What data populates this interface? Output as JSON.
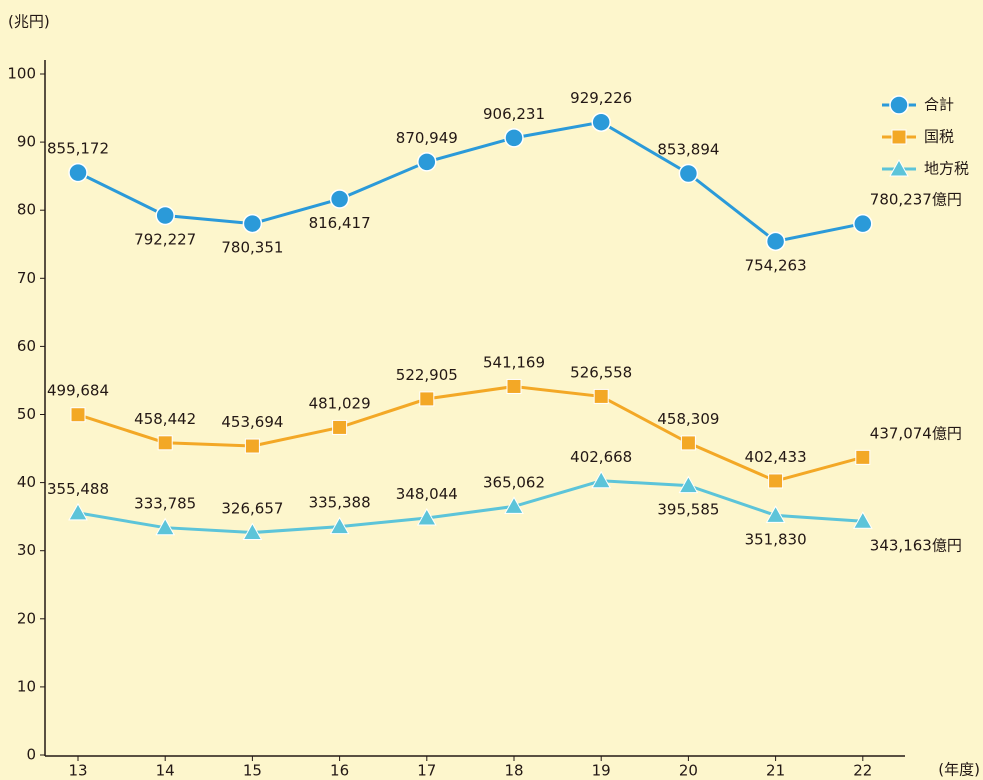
{
  "chart_data": {
    "type": "line",
    "y_axis_label": "(兆円)",
    "x_axis_label": "(年度)",
    "value_unit": "億円",
    "categories": [
      "13",
      "14",
      "15",
      "16",
      "17",
      "18",
      "19",
      "20",
      "21",
      "22"
    ],
    "series": [
      {
        "name": "合計",
        "color": "#2b9ad9",
        "marker": "circle",
        "values": [
          85.5172,
          79.2227,
          78.0351,
          81.6417,
          87.0949,
          90.6231,
          92.9226,
          85.3894,
          75.4263,
          78.0237
        ],
        "value_labels": [
          "855,172",
          "792,227",
          "780,351",
          "816,417",
          "870,949",
          "906,231",
          "929,226",
          "853,894",
          "754,263",
          "780,237"
        ]
      },
      {
        "name": "国税",
        "color": "#f3a826",
        "marker": "square",
        "values": [
          49.9684,
          45.8442,
          45.3694,
          48.1029,
          52.2905,
          54.1169,
          52.6558,
          45.8309,
          40.2433,
          43.7074
        ],
        "value_labels": [
          "499,684",
          "458,442",
          "453,694",
          "481,029",
          "522,905",
          "541,169",
          "526,558",
          "458,309",
          "402,433",
          "437,074"
        ]
      },
      {
        "name": "地方税",
        "color": "#5cc4d9",
        "marker": "triangle",
        "values": [
          35.5488,
          33.3785,
          32.6657,
          33.5388,
          34.8044,
          36.5062,
          40.2668,
          39.5585,
          35.183,
          34.3163
        ],
        "value_labels": [
          "355,488",
          "333,785",
          "326,657",
          "335,388",
          "348,044",
          "365,062",
          "402,668",
          "395,585",
          "351,830",
          "343,163"
        ]
      }
    ],
    "ylim": [
      0,
      100
    ],
    "yticks": [
      0,
      10,
      20,
      30,
      40,
      50,
      60,
      70,
      80,
      90,
      100
    ],
    "grid": false,
    "legend": "top-right"
  }
}
